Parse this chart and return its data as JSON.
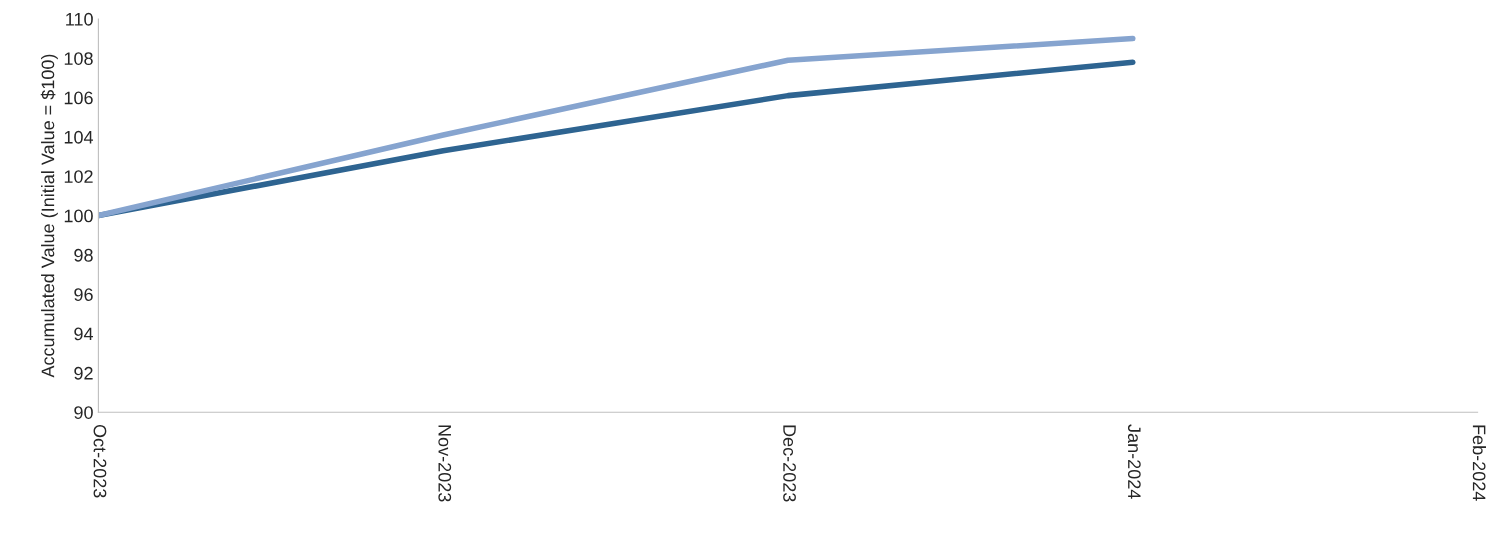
{
  "chart_data": {
    "type": "line",
    "ylabel": "Accumulated Value (Initial Value = $100)",
    "categories": [
      "Oct-2023",
      "Nov-2023",
      "Dec-2023",
      "Jan-2024",
      "Feb-2024"
    ],
    "series": [
      {
        "color": "#2e6491",
        "values": [
          100,
          103.3,
          106.1,
          107.8,
          null
        ]
      },
      {
        "color": "#86a4cf",
        "values": [
          100,
          104.1,
          107.9,
          109.0,
          null
        ]
      }
    ],
    "ylim": [
      90,
      110
    ],
    "yticks": [
      90,
      92,
      94,
      96,
      98,
      100,
      102,
      104,
      106,
      108,
      110
    ],
    "grid": false,
    "marker": "none",
    "line_style": "solid"
  }
}
